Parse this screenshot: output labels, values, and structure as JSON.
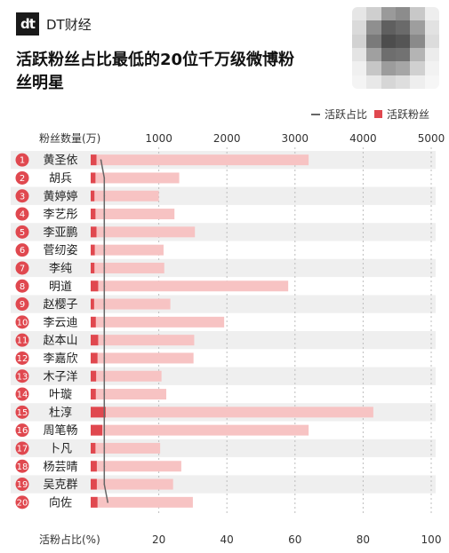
{
  "brand": {
    "logo": "dt",
    "name": "DT财经"
  },
  "title": "活跃粉丝占比最低的20位千万级微博粉丝明星",
  "legend": {
    "line_label": "活跃占比",
    "bar_label": "活跃粉丝"
  },
  "avatar_colors": [
    "#e6e6e6",
    "#cfcfcf",
    "#9a9a9a",
    "#8c8c8c",
    "#c8c8c8",
    "#eeeeee",
    "#dadada",
    "#8f8f8f",
    "#5f5f5f",
    "#6a6a6a",
    "#9e9e9e",
    "#e2e2e2",
    "#d2d2d2",
    "#7a7a7a",
    "#4d4d4d",
    "#555555",
    "#8a8a8a",
    "#dcdcdc",
    "#e4e4e4",
    "#a0a0a0",
    "#6e6e6e",
    "#727272",
    "#b4b4b4",
    "#ececec",
    "#f0f0f0",
    "#c6c6c6",
    "#9c9c9c",
    "#a6a6a6",
    "#d0d0d0",
    "#f2f2f2",
    "#f4f4f4",
    "#e8e8e8",
    "#d6d6d6",
    "#dedede",
    "#eeeeee",
    "#f6f6f6"
  ],
  "chart_data": {
    "type": "bar",
    "top_axis_label": "粉丝数量(万)",
    "bottom_axis_label": "活粉占比(%)",
    "top_xlim": [
      0,
      5000
    ],
    "top_ticks": [
      1000,
      2000,
      3000,
      4000,
      5000
    ],
    "bottom_xlim": [
      0,
      100
    ],
    "bottom_ticks": [
      20,
      40,
      60,
      80,
      100
    ],
    "grid": true,
    "legend_position": "top-right",
    "colors": {
      "total": "#f7c3c3",
      "active": "#e0484f",
      "line": "#666666",
      "row_even": "#efefef"
    },
    "ranks": [
      "1",
      "2",
      "3",
      "4",
      "5",
      "6",
      "7",
      "8",
      "9",
      "10",
      "11",
      "12",
      "13",
      "14",
      "15",
      "16",
      "17",
      "18",
      "19",
      "20"
    ],
    "categories": [
      "黄圣依",
      "胡兵",
      "黄婷婷",
      "李艺彤",
      "李亚鹏",
      "菅纫姿",
      "李纯",
      "明道",
      "赵樱子",
      "李云迪",
      "赵本山",
      "李嘉欣",
      "木子洋",
      "叶璇",
      "杜淳",
      "周笔畅",
      "卜凡",
      "杨芸晴",
      "吴克群",
      "向佐"
    ],
    "series": [
      {
        "name": "粉丝数量",
        "values": [
          3200,
          1300,
          1000,
          1230,
          1530,
          1070,
          1080,
          2900,
          1170,
          1960,
          1520,
          1510,
          1040,
          1110,
          4150,
          3200,
          1020,
          1330,
          1210,
          1500
        ]
      },
      {
        "name": "活跃粉丝",
        "values": [
          85,
          70,
          55,
          70,
          85,
          60,
          55,
          110,
          50,
          75,
          110,
          100,
          80,
          75,
          220,
          170,
          70,
          90,
          90,
          100
        ]
      },
      {
        "name": "活跃占比",
        "values": [
          3,
          4,
          4,
          4,
          4,
          4,
          4,
          4,
          4,
          4,
          4,
          4,
          4,
          4,
          4,
          4,
          4,
          4,
          4,
          5
        ]
      }
    ]
  }
}
